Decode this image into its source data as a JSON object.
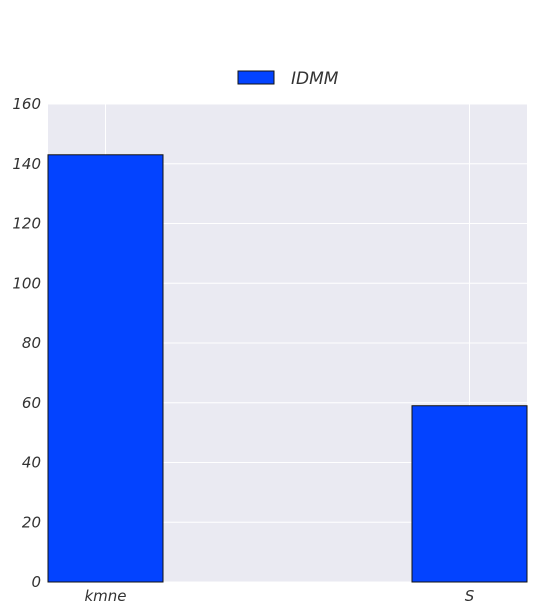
{
  "chart_data": {
    "type": "bar",
    "title": "",
    "xlabel": "",
    "ylabel": "",
    "categories": [
      "kmne",
      "S"
    ],
    "series": [
      {
        "name": "IDMM",
        "values": [
          143,
          59
        ],
        "color": "#0343ff"
      }
    ],
    "ylim": [
      0,
      160
    ],
    "yticks": [
      0,
      20,
      40,
      60,
      80,
      100,
      120,
      140,
      160
    ],
    "grid": true,
    "legend_position": "top-center",
    "colors": {
      "plot_background": "#eaeaf2",
      "grid": "#ffffff",
      "bar_edge": "#111111"
    }
  }
}
